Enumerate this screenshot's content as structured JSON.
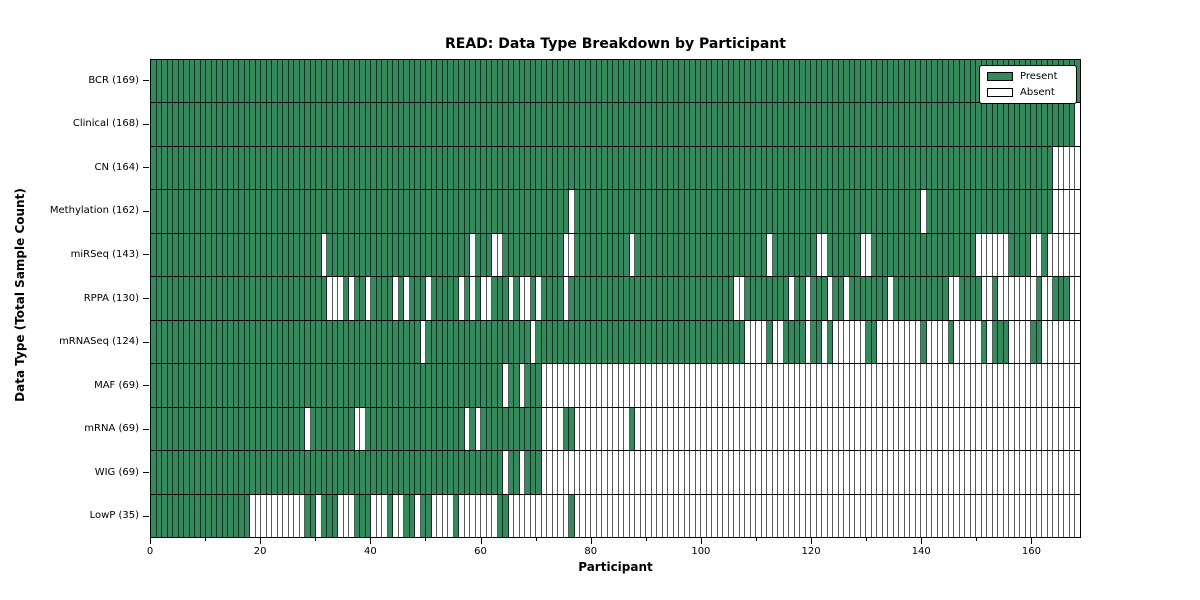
{
  "chart_data": {
    "type": "heatmap",
    "title": "READ: Data Type Breakdown by Participant",
    "xlabel": "Participant",
    "ylabel": "Data Type (Total Sample Count)",
    "n_participants": 169,
    "x_axis_range": [
      0,
      169
    ],
    "x_ticks_major": [
      0,
      20,
      40,
      60,
      80,
      100,
      120,
      140,
      160
    ],
    "x_ticks_minor": [
      10,
      30,
      50,
      70,
      90,
      110,
      130,
      150
    ],
    "grid": true,
    "legend_position": "upper right",
    "legend": [
      {
        "label": "Present",
        "color": "#348A5C"
      },
      {
        "label": "Absent",
        "color": "#FFFFFF"
      }
    ],
    "colors": {
      "present": "#348A5C",
      "absent": "#FFFFFF",
      "grid": "#000000"
    },
    "rows": [
      {
        "label": "BCR (169)",
        "name": "BCR",
        "count": 169,
        "absent_ranges": []
      },
      {
        "label": "Clinical (168)",
        "name": "Clinical",
        "count": 168,
        "absent_ranges": [
          [
            168,
            168
          ]
        ]
      },
      {
        "label": "CN (164)",
        "name": "CN",
        "count": 164,
        "absent_ranges": [
          [
            164,
            168
          ]
        ]
      },
      {
        "label": "Methylation (162)",
        "name": "Methylation",
        "count": 162,
        "absent_ranges": [
          [
            76,
            76
          ],
          [
            140,
            140
          ],
          [
            164,
            168
          ]
        ]
      },
      {
        "label": "miRSeq (143)",
        "name": "miRSeq",
        "count": 143,
        "absent_ranges": [
          [
            31,
            31
          ],
          [
            58,
            58
          ],
          [
            62,
            63
          ],
          [
            75,
            76
          ],
          [
            87,
            87
          ],
          [
            112,
            112
          ],
          [
            121,
            122
          ],
          [
            129,
            130
          ],
          [
            150,
            155
          ],
          [
            160,
            161
          ],
          [
            163,
            168
          ]
        ]
      },
      {
        "label": "RPPA (130)",
        "name": "RPPA",
        "count": 130,
        "absent_ranges": [
          [
            32,
            34
          ],
          [
            36,
            36
          ],
          [
            39,
            39
          ],
          [
            44,
            44
          ],
          [
            46,
            46
          ],
          [
            50,
            50
          ],
          [
            56,
            56
          ],
          [
            58,
            58
          ],
          [
            60,
            61
          ],
          [
            65,
            65
          ],
          [
            67,
            68
          ],
          [
            70,
            70
          ],
          [
            75,
            75
          ],
          [
            106,
            107
          ],
          [
            116,
            116
          ],
          [
            119,
            119
          ],
          [
            123,
            123
          ],
          [
            126,
            126
          ],
          [
            134,
            134
          ],
          [
            145,
            146
          ],
          [
            151,
            152
          ],
          [
            154,
            160
          ],
          [
            162,
            163
          ],
          [
            167,
            168
          ]
        ]
      },
      {
        "label": "mRNASeq (124)",
        "name": "mRNASeq",
        "count": 124,
        "absent_ranges": [
          [
            49,
            49
          ],
          [
            69,
            69
          ],
          [
            108,
            111
          ],
          [
            113,
            114
          ],
          [
            119,
            119
          ],
          [
            122,
            122
          ],
          [
            124,
            129
          ],
          [
            132,
            139
          ],
          [
            141,
            144
          ],
          [
            146,
            150
          ],
          [
            152,
            152
          ],
          [
            156,
            159
          ],
          [
            162,
            168
          ]
        ]
      },
      {
        "label": "MAF (69)",
        "name": "MAF",
        "count": 69,
        "absent_ranges": [
          [
            64,
            64
          ],
          [
            67,
            67
          ],
          [
            71,
            168
          ]
        ]
      },
      {
        "label": "mRNA (69)",
        "name": "mRNA",
        "count": 69,
        "absent_ranges": [
          [
            28,
            28
          ],
          [
            37,
            38
          ],
          [
            57,
            57
          ],
          [
            59,
            59
          ],
          [
            71,
            74
          ],
          [
            77,
            86
          ],
          [
            88,
            168
          ]
        ]
      },
      {
        "label": "WIG (69)",
        "name": "WIG",
        "count": 69,
        "absent_ranges": [
          [
            64,
            64
          ],
          [
            67,
            67
          ],
          [
            71,
            168
          ]
        ]
      },
      {
        "label": "LowP (35)",
        "name": "LowP",
        "count": 35,
        "absent_ranges": [
          [
            18,
            27
          ],
          [
            30,
            30
          ],
          [
            34,
            36
          ],
          [
            40,
            42
          ],
          [
            44,
            45
          ],
          [
            48,
            48
          ],
          [
            51,
            54
          ],
          [
            56,
            62
          ],
          [
            65,
            75
          ],
          [
            77,
            168
          ]
        ]
      }
    ]
  }
}
